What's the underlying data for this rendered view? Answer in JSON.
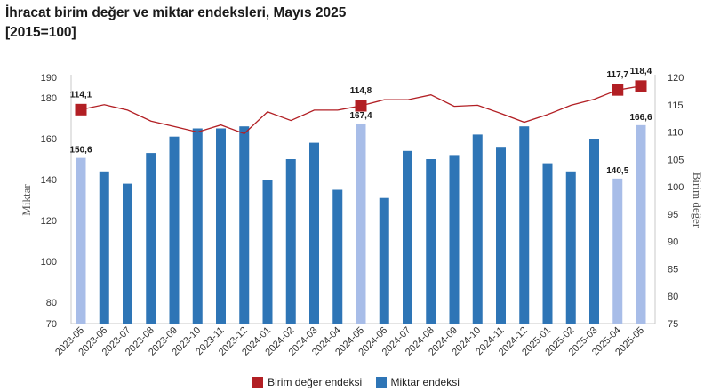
{
  "title_line1": "İhracat birim değer ve miktar endeksleri, Mayıs 2025",
  "title_line2": "[2015=100]",
  "chart_data": {
    "type": "bar+line",
    "categories": [
      "2023-05",
      "2023-06",
      "2023-07",
      "2023-08",
      "2023-09",
      "2023-10",
      "2023-11",
      "2023-12",
      "2024-01",
      "2024-02",
      "2024-03",
      "2024-04",
      "2024-05",
      "2024-06",
      "2024-07",
      "2024-08",
      "2024-09",
      "2024-10",
      "2024-11",
      "2024-12",
      "2025-01",
      "2025-02",
      "2025-03",
      "2025-04",
      "2025-05"
    ],
    "series": [
      {
        "name": "Miktar endeksi",
        "type": "bar",
        "axis": "left",
        "color": "#2e75b6",
        "highlight_color": "#a8bde8",
        "values": [
          150.6,
          144,
          138,
          153,
          161,
          165,
          165,
          166,
          140,
          150,
          158,
          135,
          167.4,
          131,
          154,
          150,
          152,
          162,
          156,
          166,
          148,
          144,
          160,
          140.5,
          166.6
        ],
        "highlighted_indices": [
          0,
          12,
          23,
          24
        ]
      },
      {
        "name": "Birim değer endeksi",
        "type": "line",
        "axis": "right",
        "color": "#b21f24",
        "values": [
          114.1,
          115,
          114,
          112,
          111,
          110,
          111.3,
          109.7,
          113.7,
          112.1,
          114,
          114,
          114.8,
          115.9,
          115.9,
          116.8,
          114.7,
          114.9,
          113.4,
          111.8,
          113.2,
          114.9,
          116,
          117.7,
          118.4
        ],
        "marked_indices": [
          0,
          12,
          23,
          24
        ]
      }
    ],
    "data_labels": [
      {
        "index": 0,
        "series": "Birim değer endeksi",
        "text": "114,1"
      },
      {
        "index": 0,
        "series": "Miktar endeksi",
        "text": "150,6"
      },
      {
        "index": 12,
        "series": "Birim değer endeksi",
        "text": "114,8"
      },
      {
        "index": 12,
        "series": "Miktar endeksi",
        "text": "167,4"
      },
      {
        "index": 23,
        "series": "Birim değer endeksi",
        "text": "117,7"
      },
      {
        "index": 23,
        "series": "Miktar endeksi",
        "text": "140,5"
      },
      {
        "index": 24,
        "series": "Birim değer endeksi",
        "text": "118,4"
      },
      {
        "index": 24,
        "series": "Miktar endeksi",
        "text": "166,6"
      }
    ],
    "y_left": {
      "label": "Miktar",
      "ticks": [
        {
          "value": 70,
          "text": "70"
        },
        {
          "value": 80,
          "text": "80"
        },
        {
          "value": 100,
          "text": "100"
        },
        {
          "value": 120,
          "text": "120"
        },
        {
          "value": 140,
          "text": "140"
        },
        {
          "value": 160,
          "text": "160"
        },
        {
          "value": 180,
          "text": "180"
        },
        {
          "value": 190,
          "text": "190"
        }
      ]
    },
    "y_right": {
      "label": "Birim değer",
      "ticks": [
        {
          "value": 75,
          "text": "75"
        },
        {
          "value": 80,
          "text": "80"
        },
        {
          "value": 85,
          "text": "85"
        },
        {
          "value": 90,
          "text": "90"
        },
        {
          "value": 95,
          "text": "95"
        },
        {
          "value": 100,
          "text": "100"
        },
        {
          "value": 105,
          "text": "105"
        },
        {
          "value": 110,
          "text": "110"
        },
        {
          "value": 115,
          "text": "115"
        },
        {
          "value": 120,
          "text": "120"
        }
      ]
    },
    "legend": [
      {
        "label": "Birim değer endeksi",
        "color": "#b21f24"
      },
      {
        "label": "Miktar endeksi",
        "color": "#2e75b6"
      }
    ],
    "legend_position": "bottom-center",
    "grid": false
  }
}
